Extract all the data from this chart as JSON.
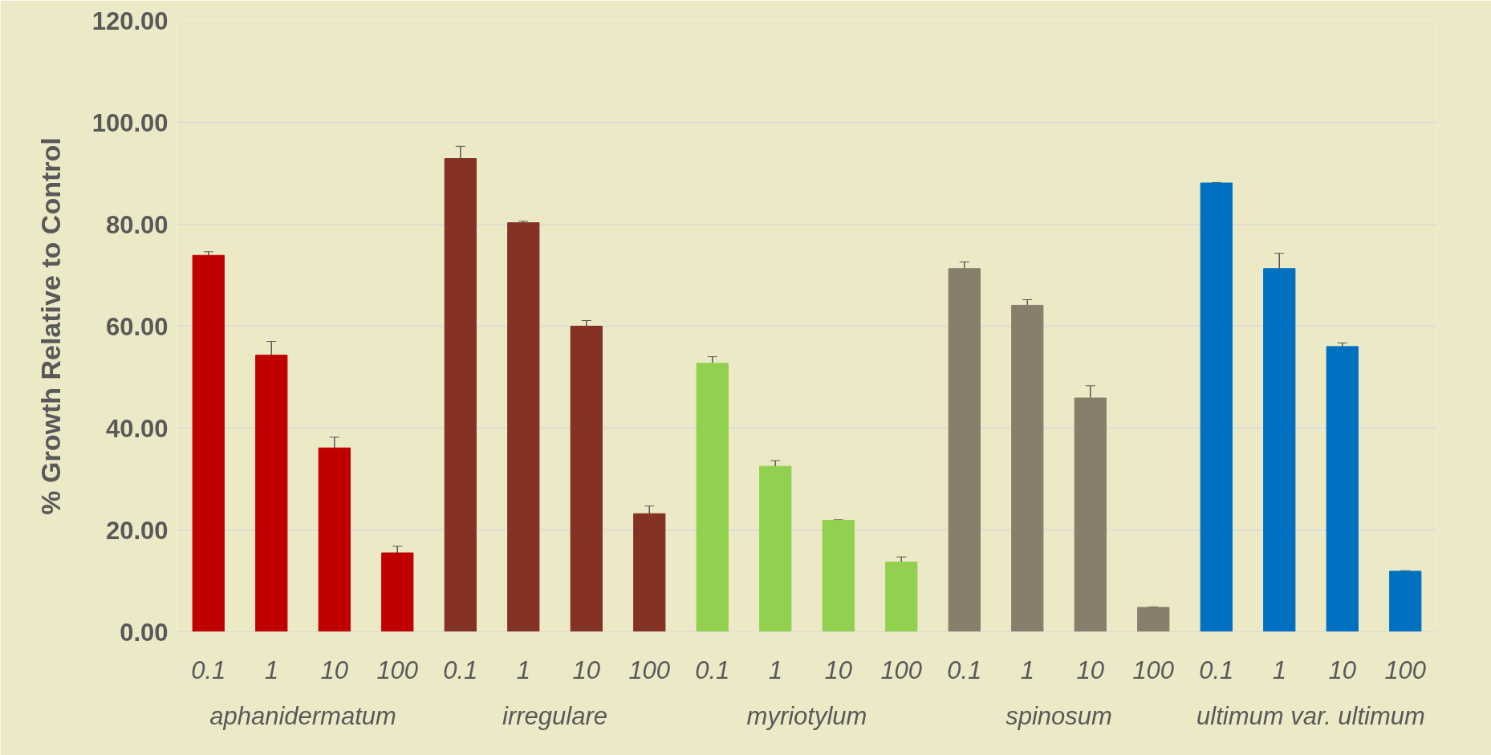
{
  "chart_data": {
    "type": "bar",
    "ylabel": "% Growth Relative to Control",
    "categories": [
      "0.1",
      "1",
      "10",
      "100",
      "0.1",
      "1",
      "10",
      "100",
      "0.1",
      "1",
      "10",
      "100",
      "0.1",
      "1",
      "10",
      "100",
      "0.1",
      "1",
      "10",
      "100"
    ],
    "values": [
      73.9,
      54.3,
      36.1,
      15.5,
      92.9,
      80.3,
      60.0,
      23.2,
      52.7,
      32.5,
      21.9,
      13.7,
      71.3,
      64.1,
      45.9,
      4.8,
      88.1,
      71.3,
      56.0,
      11.9
    ],
    "errors": [
      0.7,
      2.7,
      2.1,
      1.3,
      2.4,
      0.3,
      1.1,
      1.5,
      1.3,
      1.1,
      0.1,
      1.0,
      1.3,
      1.1,
      2.4,
      0.1,
      0.1,
      3.0,
      0.7,
      0.1
    ],
    "colors": [
      "#c00000",
      "#c00000",
      "#c00000",
      "#c00000",
      "#843224",
      "#843224",
      "#843224",
      "#843224",
      "#92d050",
      "#92d050",
      "#92d050",
      "#92d050",
      "#877f6c",
      "#877f6c",
      "#877f6c",
      "#877f6c",
      "#0070c0",
      "#0070c0",
      "#0070c0",
      "#0070c0"
    ],
    "annotations": [
      "aphanidermatum",
      "irregulare",
      "myriotylum",
      "spinosum",
      "ultimum var. ultimum"
    ],
    "ylim": [
      0,
      120
    ],
    "yticks": [
      {
        "value": 0,
        "label": "0.00"
      },
      {
        "value": 20,
        "label": "20.00"
      },
      {
        "value": 40,
        "label": "40.00"
      },
      {
        "value": 60,
        "label": "60.00"
      },
      {
        "value": 80,
        "label": "80.00"
      },
      {
        "value": 100,
        "label": "100.00"
      },
      {
        "value": 120,
        "label": "120.00"
      }
    ],
    "grid": "y"
  }
}
